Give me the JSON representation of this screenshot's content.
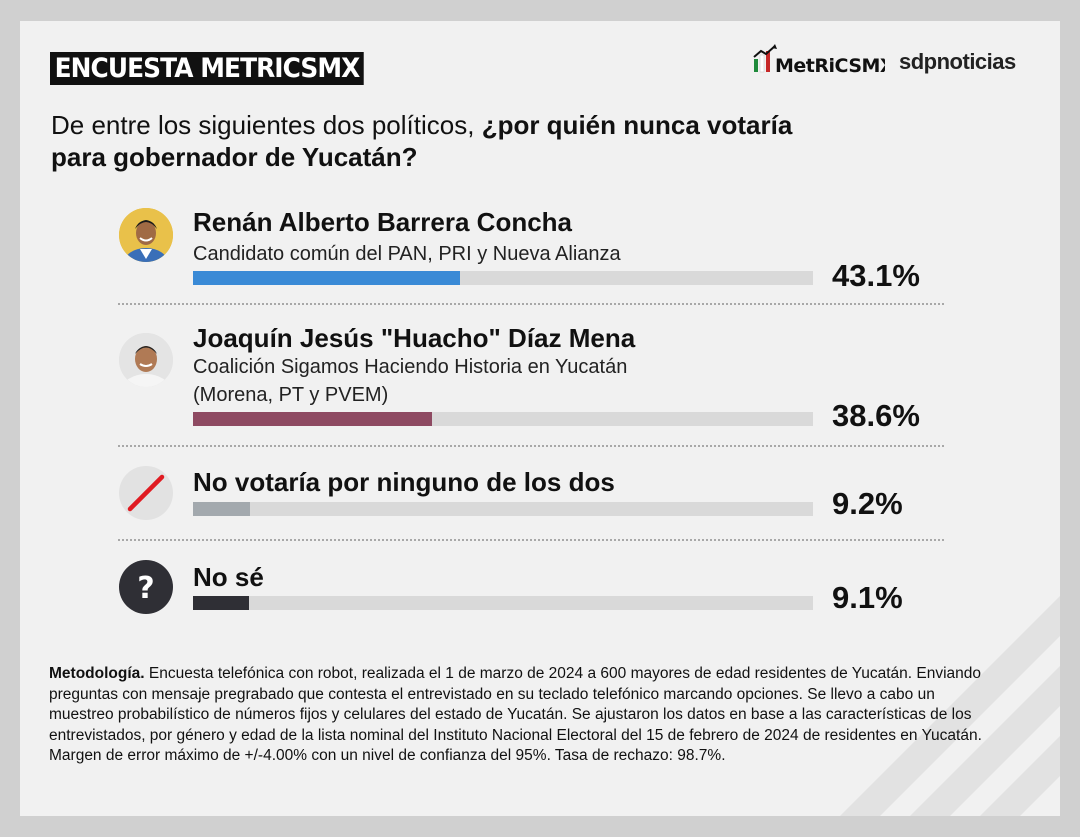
{
  "header": {
    "badge": "ENCUESTA METRICSMX",
    "logo_metrics": "MetRiCSMX",
    "logo_sdp": "sdpnoticias"
  },
  "question": {
    "plain": "De entre los siguientes dos políticos, ",
    "bold_1": "¿por quién nunca votaría",
    "bold_2": "para gobernador de Yucatán?"
  },
  "chart_data": {
    "type": "bar",
    "orientation": "horizontal",
    "xlim": [
      0,
      100
    ],
    "categories": [
      "Renán Alberto Barrera Concha",
      "Joaquín Jesús \"Huacho\" Díaz Mena",
      "No votaría por ninguno de los dos",
      "No sé"
    ],
    "values": [
      43.1,
      38.6,
      9.2,
      9.1
    ],
    "value_labels": [
      "43.1%",
      "38.6%",
      "9.2%",
      "9.1%"
    ],
    "subtitles": [
      "Candidato común del PAN, PRI y Nueva Alianza",
      "Coalición Sigamos Haciendo Historia en Yucatán",
      "(Morena, PT y PVEM)"
    ],
    "colors": [
      "#3a8ad6",
      "#8e4a62",
      "#a3a9ae",
      "#2f2f35"
    ],
    "track_color": "#d9d9d9"
  },
  "methodology": {
    "label": "Metodología.",
    "text": " Encuesta telefónica con robot, realizada el 1 de marzo de 2024 a 600 mayores de edad residentes de Yucatán. Enviando preguntas con mensaje pregrabado que contesta el entrevistado en su teclado telefónico marcando opciones. Se llevo a cabo un muestreo probabilístico de números fijos y celulares del estado de Yucatán. Se ajustaron los datos en base a las características de los entrevistados, por género y edad de la lista nominal del Instituto Nacional Electoral del 15 de febrero de 2024 de residentes en Yucatán. Margen de error máximo de +/-4.00% con un nivel de confianza del 95%. Tasa de rechazo: 98.7%."
  }
}
